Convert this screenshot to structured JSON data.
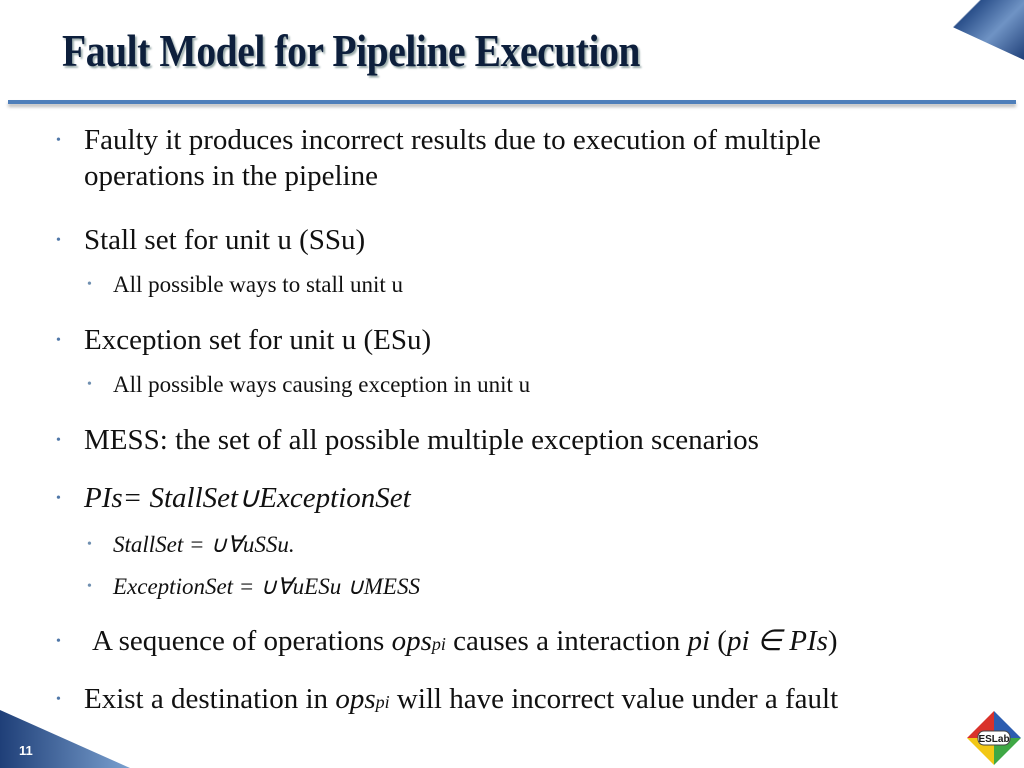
{
  "title": "Fault Model for Pipeline Execution",
  "bullets": [
    {
      "text1": "Faulty it produces incorrect results due to execution of multiple",
      "text2": "operations in the pipeline"
    },
    {
      "text": "Stall set for unit u (SSu)"
    },
    {
      "text": "All possible ways to stall unit u"
    },
    {
      "text": "Exception set for unit u (ESu)"
    },
    {
      "text": "All possible ways causing exception in unit u"
    },
    {
      "text": "MESS: the set of all possible multiple exception scenarios"
    },
    {
      "text": "PIs= StallSet∪ExceptionSet"
    },
    {
      "text": "StallSet = ∪∀uSSu."
    },
    {
      "text": "ExceptionSet = ∪∀uESu ∪MESS"
    },
    {
      "a": "A sequence of operations ",
      "b": "ops",
      "c": "pi",
      "d": " causes a interaction ",
      "e": "pi",
      "f": " (",
      "g": "pi ∈ PIs",
      "h": ")"
    },
    {
      "a": "Exist a destination in ",
      "b": "ops",
      "c": "pi",
      "d": " will have incorrect value under a fault"
    }
  ],
  "page_number": "11",
  "logo_text": "ESLab",
  "colors": {
    "title": "#0d1f3c",
    "accent": "#4f7fba",
    "bullet": "#5077a8"
  }
}
